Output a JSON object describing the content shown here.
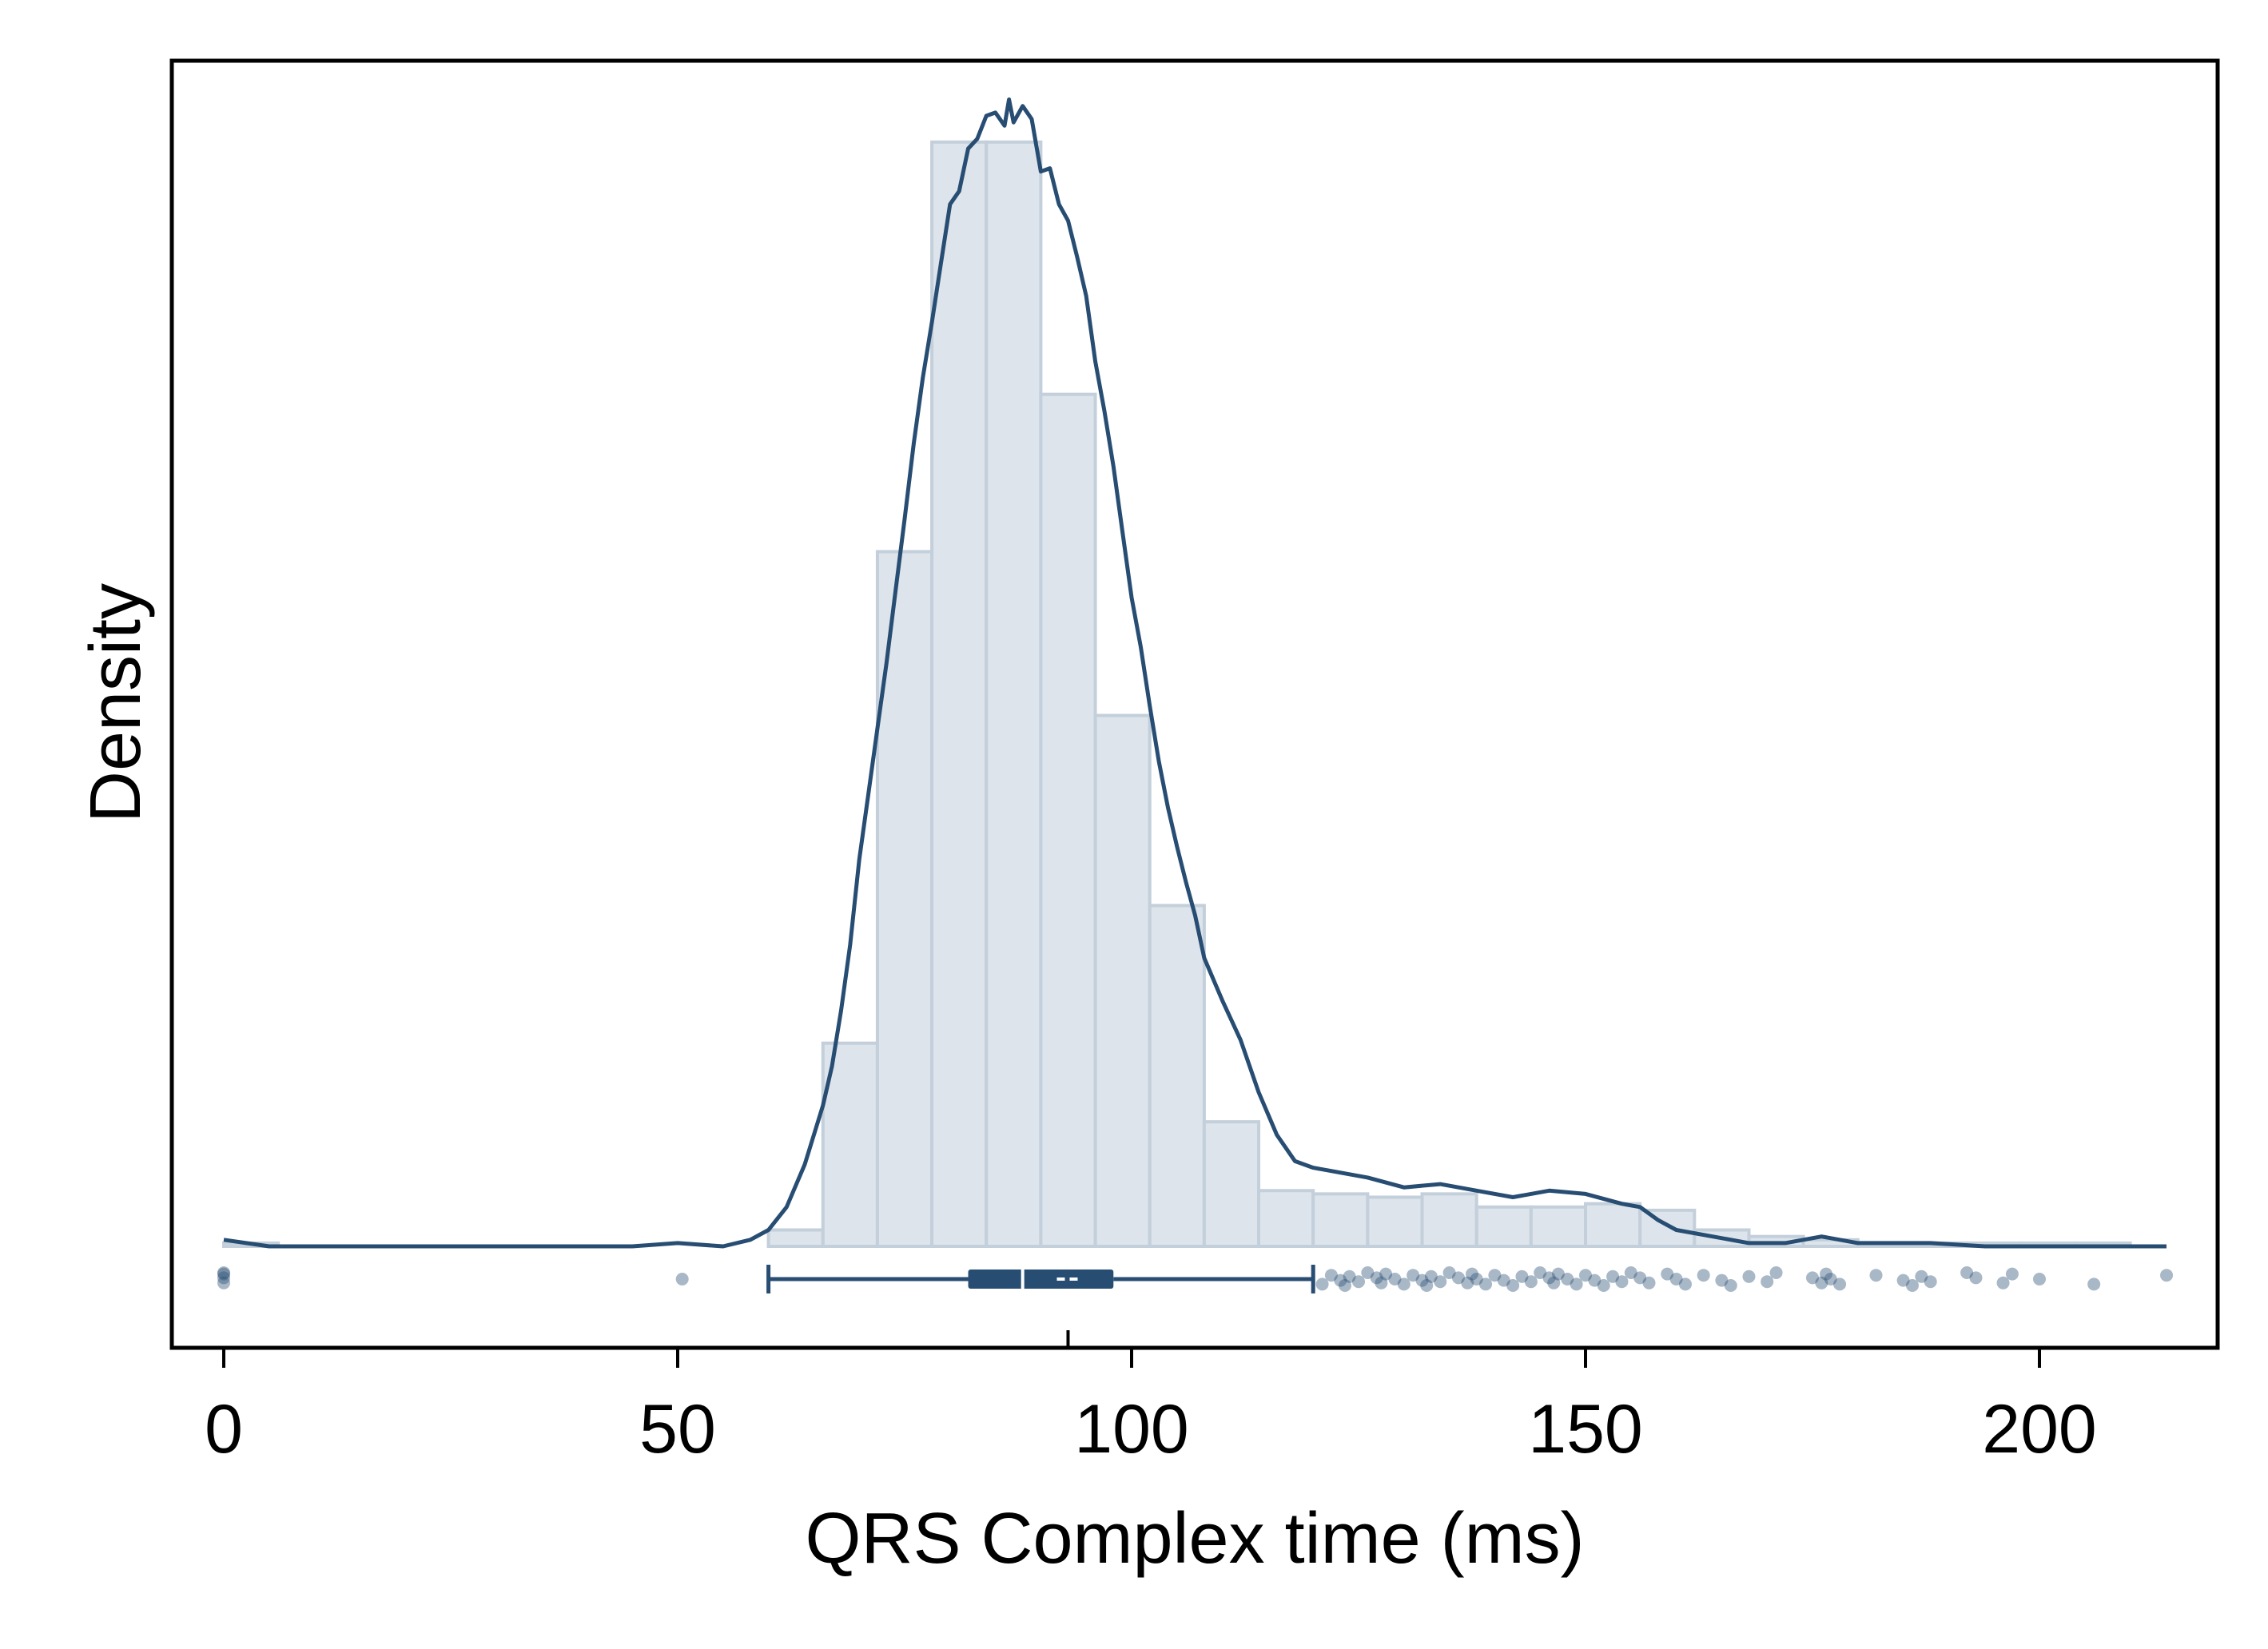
{
  "chart_data": {
    "type": "histogram",
    "overlays": [
      "kernel-density-line",
      "horizontal-boxplot",
      "outlier-points"
    ],
    "xlabel": "QRS Complex time (ms)",
    "ylabel": "Density",
    "xlim": [
      -6,
      222
    ],
    "ylim": [
      0,
      0.0345
    ],
    "x_ticks": [
      0,
      50,
      100,
      150,
      200
    ],
    "x_tick_labels": [
      "0",
      "50",
      "100",
      "150",
      "200"
    ],
    "y_ticks_shown": false,
    "grid": false,
    "histogram": {
      "bin_width": 6,
      "bins": [
        {
          "start": 0,
          "density": 0.0001
        },
        {
          "start": 6,
          "density": 0.0
        },
        {
          "start": 12,
          "density": 0.0
        },
        {
          "start": 18,
          "density": 0.0
        },
        {
          "start": 24,
          "density": 0.0
        },
        {
          "start": 30,
          "density": 0.0
        },
        {
          "start": 36,
          "density": 0.0
        },
        {
          "start": 42,
          "density": 0.0
        },
        {
          "start": 48,
          "density": 0.0
        },
        {
          "start": 54,
          "density": 0.0
        },
        {
          "start": 60,
          "density": 0.0005
        },
        {
          "start": 66,
          "density": 0.0062
        },
        {
          "start": 72,
          "density": 0.0212
        },
        {
          "start": 78,
          "density": 0.0337
        },
        {
          "start": 84,
          "density": 0.0337
        },
        {
          "start": 90,
          "density": 0.026
        },
        {
          "start": 96,
          "density": 0.0162
        },
        {
          "start": 102,
          "density": 0.0104
        },
        {
          "start": 108,
          "density": 0.0038
        },
        {
          "start": 114,
          "density": 0.0017
        },
        {
          "start": 120,
          "density": 0.0016
        },
        {
          "start": 126,
          "density": 0.0015
        },
        {
          "start": 132,
          "density": 0.0016
        },
        {
          "start": 138,
          "density": 0.0012
        },
        {
          "start": 144,
          "density": 0.0012
        },
        {
          "start": 150,
          "density": 0.0013
        },
        {
          "start": 156,
          "density": 0.0011
        },
        {
          "start": 162,
          "density": 0.0005
        },
        {
          "start": 168,
          "density": 0.0003
        },
        {
          "start": 174,
          "density": 0.0002
        },
        {
          "start": 180,
          "density": 0.0001
        },
        {
          "start": 186,
          "density": 0.0001
        },
        {
          "start": 192,
          "density": 0.0001
        },
        {
          "start": 198,
          "density": 0.0001
        },
        {
          "start": 204,
          "density": 0.0001
        },
        {
          "start": 210,
          "density": 0.0
        }
      ]
    },
    "density_curve": {
      "x": [
        0,
        5,
        10,
        20,
        40,
        45,
        50,
        55,
        58,
        60,
        62,
        64,
        66,
        67,
        68,
        69,
        70,
        71,
        72,
        73,
        74,
        75,
        76,
        77,
        78,
        79,
        80,
        81,
        82,
        83,
        84,
        85,
        86,
        86.5,
        87,
        88,
        89,
        90,
        91,
        92,
        93,
        94,
        95,
        96,
        97,
        98,
        99,
        100,
        101,
        102,
        103,
        104,
        105,
        106,
        107,
        108,
        110,
        112,
        114,
        116,
        118,
        120,
        122,
        126,
        130,
        134,
        138,
        142,
        146,
        150,
        154,
        156,
        158,
        160,
        164,
        168,
        172,
        176,
        180,
        184,
        188,
        194,
        200,
        206,
        214
      ],
      "y": [
        0.0002,
        0.0,
        0.0,
        0.0,
        0.0,
        0.0,
        0.0001,
        0.0,
        0.0002,
        0.0005,
        0.0012,
        0.0025,
        0.0043,
        0.0055,
        0.0072,
        0.0092,
        0.0118,
        0.0138,
        0.0158,
        0.0178,
        0.02,
        0.0222,
        0.0245,
        0.0265,
        0.0282,
        0.03,
        0.0318,
        0.0322,
        0.0335,
        0.0338,
        0.0345,
        0.0346,
        0.0342,
        0.035,
        0.0343,
        0.0348,
        0.0344,
        0.0328,
        0.0329,
        0.0318,
        0.0313,
        0.0302,
        0.029,
        0.027,
        0.0255,
        0.0238,
        0.0218,
        0.0198,
        0.0183,
        0.0165,
        0.0148,
        0.0134,
        0.0122,
        0.0111,
        0.0101,
        0.0088,
        0.0075,
        0.0063,
        0.0047,
        0.0034,
        0.0026,
        0.0024,
        0.0023,
        0.0021,
        0.0018,
        0.0019,
        0.0017,
        0.0015,
        0.0017,
        0.0016,
        0.0013,
        0.0012,
        0.0008,
        0.0005,
        0.0003,
        0.0001,
        0.0001,
        0.0003,
        0.0001,
        0.0001,
        0.0001,
        0.0,
        0.0,
        0.0,
        0.0
      ]
    },
    "boxplot": {
      "whisker_low": 60,
      "q1": 82,
      "median": 88,
      "mean": 93,
      "q3": 98,
      "whisker_high": 120
    },
    "outliers": [
      0,
      0,
      0,
      0,
      50.5,
      121,
      122,
      123,
      123.5,
      124,
      125,
      126,
      127,
      127.5,
      128,
      129,
      130,
      131,
      132,
      132.5,
      133,
      134,
      135,
      136,
      137,
      137.5,
      138,
      139,
      140,
      141,
      142,
      143,
      144,
      145,
      146,
      146.5,
      147,
      148,
      149,
      150,
      151,
      152,
      153,
      154,
      155,
      156,
      157,
      159,
      160,
      161,
      163,
      165,
      166,
      168,
      170,
      171,
      175,
      176,
      176.5,
      177,
      178,
      182,
      185,
      186,
      187,
      188,
      192,
      193,
      196,
      197,
      200,
      206,
      214
    ]
  },
  "colors": {
    "line": "#284d73",
    "bar_fill": "#dde4eb",
    "bar_stroke": "#c3cfda",
    "point": "#284d73",
    "frame": "#000000"
  }
}
